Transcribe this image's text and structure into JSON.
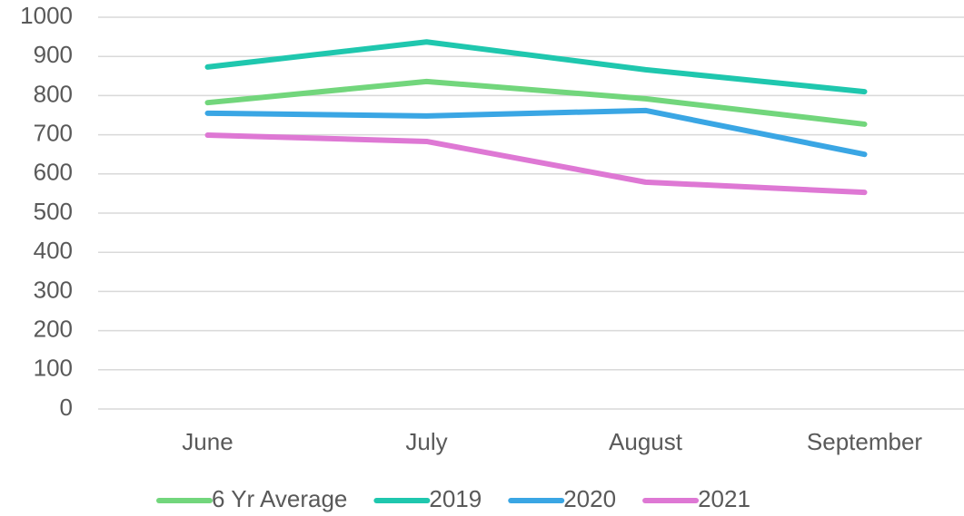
{
  "chart_data": {
    "type": "line",
    "categories": [
      "June",
      "July",
      "August",
      "September"
    ],
    "series": [
      {
        "name": "6 Yr Average",
        "color": "#72d67c",
        "values": [
          782,
          836,
          792,
          727
        ]
      },
      {
        "name": "2019",
        "color": "#1fc7ae",
        "values": [
          873,
          937,
          866,
          810
        ]
      },
      {
        "name": "2020",
        "color": "#3aa6e4",
        "values": [
          755,
          748,
          762,
          650
        ]
      },
      {
        "name": "2021",
        "color": "#de78d4",
        "values": [
          699,
          683,
          579,
          553
        ]
      }
    ],
    "ylim": [
      0,
      1000
    ],
    "yticks": [
      0,
      100,
      200,
      300,
      400,
      500,
      600,
      700,
      800,
      900,
      1000
    ],
    "grid": true,
    "legend": "bottom"
  }
}
